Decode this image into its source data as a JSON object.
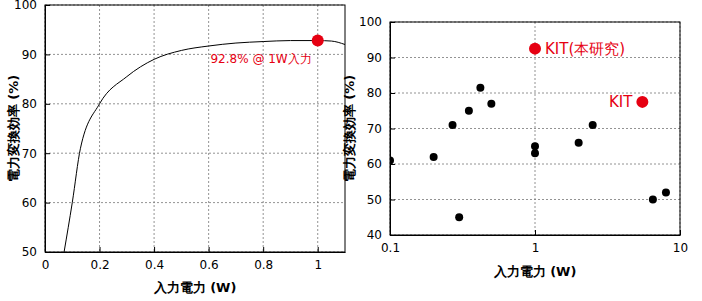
{
  "chart_data": [
    {
      "type": "line",
      "x_label": "入力電力 (W)",
      "y_label": "電力変換効率 (%)",
      "x": [
        0.07,
        0.1,
        0.13,
        0.2,
        0.3,
        0.4,
        0.5,
        0.6,
        0.7,
        0.8,
        0.9,
        1.0,
        1.05,
        1.1
      ],
      "series": [
        {
          "type": "line",
          "color": "#000000",
          "line_style": "solid",
          "values": [
            50,
            60,
            71,
            80,
            85.5,
            89,
            90.8,
            91.7,
            92.3,
            92.6,
            92.8,
            92.8,
            92.7,
            92.0
          ]
        },
        {
          "type": "scatter",
          "color": "#e60012",
          "marker": "circle",
          "x": [
            1.0
          ],
          "values": [
            92.8
          ],
          "labels": [
            "92.8% @ 1W入力"
          ]
        }
      ],
      "xlim": [
        0,
        1.1
      ],
      "xticks": [
        0,
        0.2,
        0.4,
        0.6,
        0.8,
        1
      ],
      "ylim": [
        50,
        100
      ],
      "yticks": [
        50,
        60,
        70,
        80,
        90,
        100
      ],
      "grid": true
    },
    {
      "type": "scatter",
      "x_label": "入力電力 (W)",
      "y_label": "電力変換効率 (%)",
      "log": "x",
      "series": [
        {
          "type": "scatter",
          "color": "#000000",
          "marker": "circle",
          "x": [
            0.1,
            0.2,
            0.27,
            0.3,
            0.35,
            0.42,
            0.5,
            1.0,
            1.0,
            2.0,
            2.5,
            6.5,
            8.0
          ],
          "values": [
            61,
            62,
            71,
            45,
            75,
            81.5,
            77,
            65,
            63,
            66,
            71,
            50,
            52
          ]
        },
        {
          "type": "scatter",
          "color": "#e60012",
          "marker": "circle",
          "x": [
            1.0,
            5.5
          ],
          "values": [
            92.5,
            77.5
          ],
          "labels": [
            "KIT(本研究)",
            "KIT"
          ]
        }
      ],
      "xlim": [
        0.1,
        10
      ],
      "xticks": [
        0.1,
        1,
        10
      ],
      "ylim": [
        40,
        100
      ],
      "yticks": [
        40,
        50,
        60,
        70,
        80,
        90,
        100
      ],
      "grid": true
    }
  ]
}
